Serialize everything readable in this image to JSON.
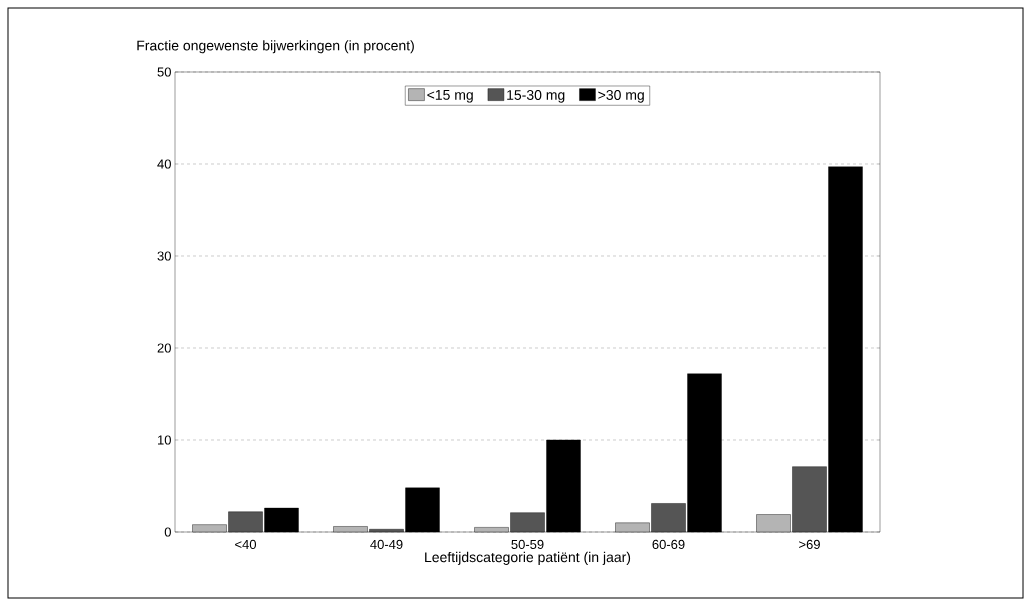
{
  "chart_data": {
    "type": "bar",
    "ylabel": "Fractie ongewenste bijwerkingen (in procent)",
    "xlabel": "Leeftijdscategorie patiënt (in jaar)",
    "categories": [
      "<40",
      "40-49",
      "50-59",
      "60-69",
      ">69"
    ],
    "series": [
      {
        "name": "<15 mg",
        "color": "#b4b4b4",
        "values": [
          0.8,
          0.6,
          0.5,
          1.0,
          1.9
        ]
      },
      {
        "name": "15-30 mg",
        "color": "#555555",
        "values": [
          2.2,
          0.3,
          2.1,
          3.1,
          7.1
        ]
      },
      {
        "name": ">30 mg",
        "color": "#000000",
        "values": [
          2.6,
          4.8,
          10.0,
          17.2,
          39.7
        ]
      }
    ],
    "ylim": [
      0,
      50
    ],
    "yticks": [
      0,
      10,
      20,
      30,
      40,
      50
    ],
    "grid": "y",
    "legend": "top"
  }
}
